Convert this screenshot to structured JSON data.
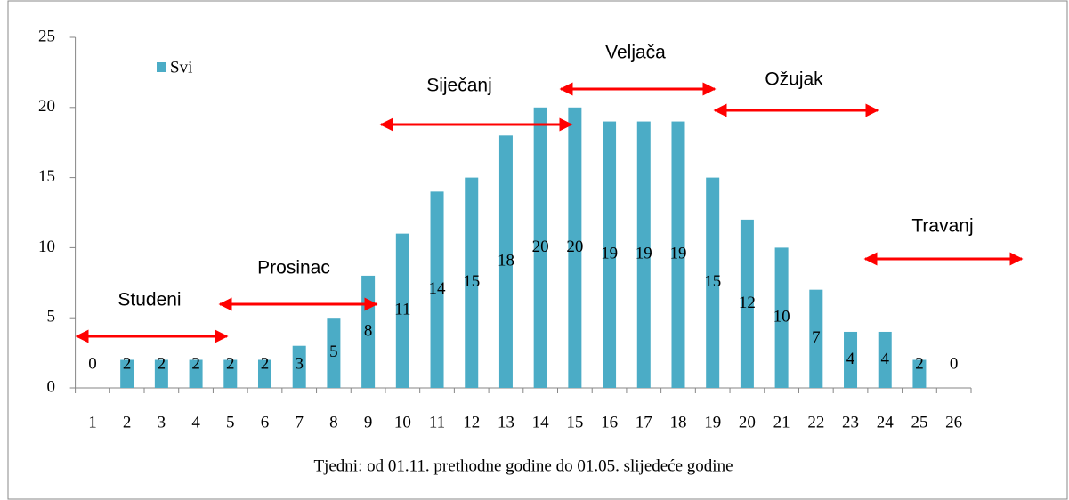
{
  "chart_data": {
    "type": "bar",
    "categories": [
      "1",
      "2",
      "3",
      "4",
      "5",
      "6",
      "7",
      "8",
      "9",
      "10",
      "11",
      "12",
      "13",
      "14",
      "15",
      "16",
      "17",
      "18",
      "19",
      "20",
      "21",
      "22",
      "23",
      "24",
      "25",
      "26"
    ],
    "series": [
      {
        "name": "Svi",
        "color": "#4bacc6",
        "values": [
          0,
          2,
          2,
          2,
          2,
          2,
          3,
          5,
          8,
          11,
          14,
          15,
          18,
          20,
          20,
          19,
          19,
          19,
          15,
          12,
          10,
          7,
          4,
          4,
          2,
          0
        ]
      }
    ],
    "ylim": [
      0,
      25
    ],
    "yticks": [
      0,
      5,
      10,
      15,
      20,
      25
    ],
    "x_label": "Tjedni: od 01.11. prethodne godine do 01.05. slijedeće godine",
    "legend": "upper left",
    "annotations": [
      "Studeni",
      "Prosinac",
      "Siječanj",
      "Veljača",
      "Ožujak",
      "Travanj"
    ]
  }
}
